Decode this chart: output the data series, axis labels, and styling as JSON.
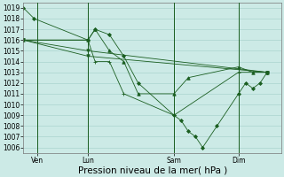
{
  "title": "Pression niveau de la mer( hPa )",
  "bg_color": "#cceae6",
  "grid_color": "#aad4ce",
  "line_color": "#1a5e20",
  "ylim": [
    1005.5,
    1019.5
  ],
  "yticks": [
    1006,
    1007,
    1008,
    1009,
    1010,
    1011,
    1012,
    1013,
    1014,
    1015,
    1016,
    1017,
    1018,
    1019
  ],
  "xlim": [
    0,
    36
  ],
  "xtick_labels": [
    "Ven",
    "Lun",
    "Sam",
    "Dim"
  ],
  "xtick_positions": [
    2,
    9,
    21,
    30
  ],
  "vlines_x": [
    2,
    9,
    21,
    30
  ],
  "series": [
    {
      "x": [
        0,
        1.5,
        9,
        10,
        12,
        14,
        16,
        21,
        22,
        23,
        24,
        25,
        27,
        30,
        31,
        32,
        33,
        34
      ],
      "y": [
        1019,
        1018,
        1016,
        1017,
        1016.5,
        1014.5,
        1012,
        1009,
        1008.5,
        1007.5,
        1007,
        1006,
        1008,
        1011,
        1012,
        1011.5,
        1012,
        1013
      ],
      "linestyle": "-",
      "marker": "D",
      "markersize": 2.0
    },
    {
      "x": [
        0,
        9,
        34
      ],
      "y": [
        1016,
        1015,
        1013
      ],
      "linestyle": "-",
      "marker": "v",
      "markersize": 2.5
    },
    {
      "x": [
        0,
        9,
        34
      ],
      "y": [
        1016,
        1014.5,
        1013
      ],
      "linestyle": "-",
      "marker": "v",
      "markersize": 2.5
    },
    {
      "x": [
        0,
        9,
        10,
        12,
        14,
        16,
        21,
        23,
        30,
        32,
        34
      ],
      "y": [
        1016,
        1016,
        1017,
        1015,
        1014,
        1011,
        1011,
        1012.5,
        1013.5,
        1013,
        1013
      ],
      "linestyle": "-",
      "marker": "^",
      "markersize": 2.5
    },
    {
      "x": [
        0,
        9,
        10,
        12,
        14,
        21,
        30,
        34
      ],
      "y": [
        1016,
        1016,
        1014,
        1014,
        1011,
        1009,
        1013,
        1013
      ],
      "linestyle": "-",
      "marker": "+",
      "markersize": 3.5
    }
  ],
  "tick_fontsize": 5.5,
  "xlabel_fontsize": 7.5
}
